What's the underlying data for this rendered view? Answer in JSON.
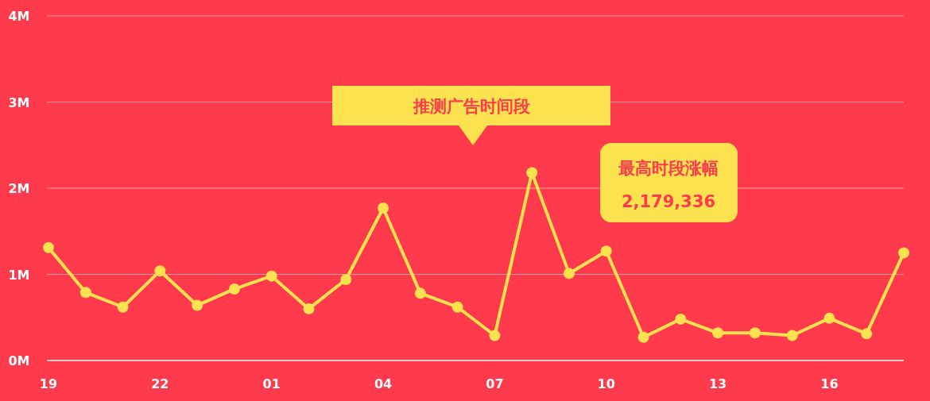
{
  "chart_data": {
    "type": "line",
    "categories": [
      "19",
      null,
      null,
      "22",
      null,
      null,
      "01",
      null,
      null,
      "04",
      null,
      null,
      "07",
      null,
      null,
      "10",
      null,
      null,
      "13",
      null,
      null,
      "16",
      null,
      null
    ],
    "series": [
      {
        "color": "#fde24f",
        "values": [
          1.31,
          0.79,
          0.62,
          1.04,
          0.64,
          0.83,
          0.98,
          0.6,
          0.94,
          1.77,
          0.78,
          0.62,
          0.29,
          2.179336,
          1.01,
          1.27,
          0.27,
          0.48,
          0.32,
          0.32,
          0.29,
          0.49,
          0.31,
          1.25
        ]
      }
    ],
    "ylim": [
      0,
      4
    ],
    "yticks": [
      {
        "value": 0,
        "label": "0M"
      },
      {
        "value": 1,
        "label": "1M"
      },
      {
        "value": 2,
        "label": "2M"
      },
      {
        "value": 3,
        "label": "3M"
      },
      {
        "value": 4,
        "label": "4M"
      }
    ],
    "grid": "y",
    "marker": "circle",
    "line_style": "solid",
    "annotations": [
      "推测广告时间段",
      "最高时段涨幅",
      "2,179,336"
    ]
  }
}
